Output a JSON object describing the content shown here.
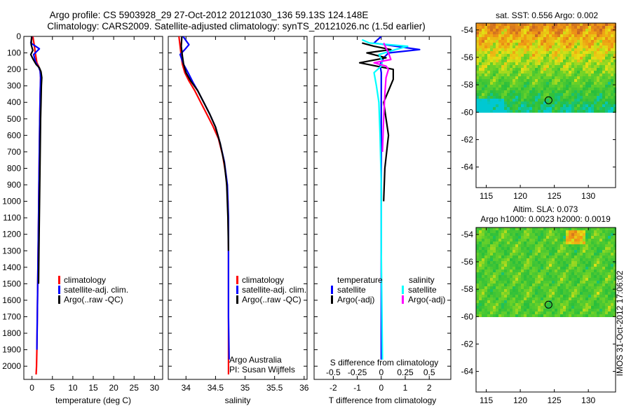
{
  "titles": {
    "line1": "Argo profile: CS 5903928_29 27-Oct-2012 20121030_136 59.13S 124.148E",
    "line2": "Climatology: CARS2009. Satellite-adjusted climatology: synTS_20121026.nc (1.5d earlier)"
  },
  "colors": {
    "climatology": "#ff0000",
    "satellite": "#0000ff",
    "argo": "#000000",
    "salinity_satellite": "#00ffff",
    "salinity_argo": "#ff00ff"
  },
  "chart_data": [
    {
      "type": "line",
      "name": "temperature",
      "xlabel": "temperature (deg C)",
      "ylabel": "",
      "xlim": [
        -2,
        32
      ],
      "ylim": [
        2080,
        0
      ],
      "xticks": [
        0,
        5,
        10,
        15,
        20,
        25,
        30
      ],
      "xtick_labels": [
        "0",
        "5",
        "10",
        "15",
        "20",
        "25",
        "30"
      ],
      "yticks": [
        0,
        100,
        200,
        300,
        400,
        500,
        600,
        700,
        800,
        900,
        1000,
        1100,
        1200,
        1300,
        1400,
        1500,
        1600,
        1700,
        1800,
        1900,
        2000
      ],
      "ytick_labels": [
        "0",
        "100",
        "200",
        "300",
        "400",
        "500",
        "600",
        "700",
        "800",
        "900",
        "1000",
        "1100",
        "1200",
        "1300",
        "1400",
        "1500",
        "1600",
        "1700",
        "1800",
        "1900",
        "2000"
      ],
      "legend": [
        "climatology",
        "satellite-adj. clim.",
        "Argo(..raw -QC)"
      ],
      "legend_position": "lower-middle",
      "series": [
        {
          "name": "climatology",
          "color_key": "climatology",
          "x": [
            0.2,
            0.4,
            0.6,
            0.8,
            1.0,
            1.2,
            1.6,
            2.0,
            2.1,
            2.0,
            1.9,
            1.8,
            1.7,
            1.6,
            1.5,
            1.4,
            1.3,
            1.2,
            1.1,
            1.0
          ],
          "y": [
            0,
            30,
            60,
            100,
            130,
            160,
            180,
            210,
            250,
            350,
            500,
            700,
            900,
            1100,
            1300,
            1500,
            1700,
            1900,
            2000,
            2050
          ]
        },
        {
          "name": "satellite-adj. clim.",
          "color_key": "satellite",
          "x": [
            0.0,
            -0.3,
            1.8,
            0.4,
            0.8,
            1.2,
            1.6,
            2.0,
            2.1,
            2.0,
            1.9,
            1.8,
            1.7,
            1.6,
            1.5,
            1.4,
            1.3,
            1.2
          ],
          "y": [
            0,
            40,
            75,
            110,
            150,
            170,
            185,
            210,
            250,
            350,
            500,
            700,
            900,
            1100,
            1300,
            1500,
            1700,
            1900
          ]
        },
        {
          "name": "Argo(..raw -QC)",
          "color_key": "argo",
          "x": [
            -0.1,
            -0.2,
            0.2,
            -0.3,
            0.3,
            1.0,
            1.8,
            2.2,
            2.4,
            2.3,
            2.2,
            2.1,
            2.0,
            1.9,
            1.8,
            1.7,
            1.6
          ],
          "y": [
            0,
            50,
            85,
            110,
            140,
            170,
            190,
            215,
            250,
            300,
            400,
            500,
            700,
            900,
            1100,
            1300,
            1500
          ]
        }
      ]
    },
    {
      "type": "line",
      "name": "salinity",
      "xlabel": "salinity",
      "xlim": [
        33.7,
        36.05
      ],
      "ylim": [
        2080,
        0
      ],
      "xticks": [
        34,
        34.5,
        35,
        35.5,
        36
      ],
      "xtick_labels": [
        "34",
        "34.5",
        "35",
        "35.5",
        "36"
      ],
      "legend": [
        "climatology",
        "satellite-adj. clim.",
        "Argo(..raw -QC)"
      ],
      "legend_position": "lower-right",
      "annotation": [
        "Argo Australia",
        "PI: Susan Wijffels"
      ],
      "series": [
        {
          "name": "climatology",
          "color_key": "climatology",
          "x": [
            33.88,
            33.9,
            33.92,
            33.94,
            33.98,
            34.05,
            34.15,
            34.25,
            34.35,
            34.45,
            34.55,
            34.62,
            34.68,
            34.71,
            34.72,
            34.72,
            34.72
          ],
          "y": [
            0,
            60,
            120,
            170,
            220,
            270,
            330,
            400,
            470,
            540,
            620,
            720,
            850,
            1000,
            1300,
            1700,
            2050
          ]
        },
        {
          "name": "satellite-adj. clim.",
          "color_key": "satellite",
          "x": [
            33.95,
            34.05,
            33.98,
            33.9,
            33.96,
            34.05,
            34.12,
            34.2,
            34.3,
            34.4,
            34.5,
            34.58,
            34.65,
            34.7,
            34.72,
            34.72,
            34.72,
            34.73
          ],
          "y": [
            0,
            50,
            80,
            110,
            170,
            230,
            280,
            330,
            400,
            470,
            550,
            650,
            760,
            900,
            1100,
            1400,
            1700,
            1960
          ]
        },
        {
          "name": "Argo(..raw -QC)",
          "color_key": "argo",
          "x": [
            33.93,
            33.92,
            33.94,
            33.96,
            34.0,
            34.08,
            34.2,
            34.3,
            34.4,
            34.5,
            34.58,
            34.65,
            34.69,
            34.71,
            34.72
          ],
          "y": [
            0,
            60,
            120,
            170,
            220,
            270,
            330,
            400,
            470,
            550,
            650,
            770,
            900,
            1100,
            1300
          ]
        }
      ]
    },
    {
      "type": "line",
      "name": "difference",
      "xlabel": "T difference from climatology",
      "xlabel_top": "S difference from climatology",
      "xlim": [
        -2.8,
        2.9
      ],
      "ylim": [
        2080,
        0
      ],
      "xticks": [
        -2,
        -1,
        0,
        1,
        2
      ],
      "xtick_labels": [
        "-2",
        "-1",
        "0",
        "1",
        "2"
      ],
      "sticks": [
        -2,
        -1,
        0,
        1,
        2
      ],
      "stick_labels": [
        "-0.5",
        "-0.25",
        "0",
        "0.25",
        "0.5"
      ],
      "legend_groups": [
        {
          "title": "temperature",
          "items": [
            "satellite",
            "Argo(-adj)"
          ]
        },
        {
          "title": "salinity",
          "items": [
            "satellite",
            "Argo(-adj)"
          ]
        }
      ],
      "legend_position": "lower-middle",
      "series": [
        {
          "name": "temperature satellite",
          "color_key": "satellite",
          "x": [
            0,
            -0.3,
            0.6,
            1.6,
            0.3,
            0.1,
            -0.05,
            0,
            0,
            0,
            0,
            0,
            0
          ],
          "y": [
            0,
            40,
            60,
            80,
            100,
            130,
            170,
            220,
            300,
            500,
            900,
            1400,
            1960
          ]
        },
        {
          "name": "temperature Argo(-adj)",
          "color_key": "argo",
          "x": [
            -0.8,
            -0.3,
            0.4,
            -0.6,
            0.2,
            -0.9,
            -0.2,
            0.5,
            0.5,
            0.1,
            0.3,
            0.15,
            0.1
          ],
          "y": [
            40,
            60,
            80,
            100,
            130,
            160,
            180,
            200,
            260,
            400,
            600,
            800,
            1000
          ]
        },
        {
          "name": "salinity satellite",
          "color_key": "salinity_satellite",
          "x": [
            -0.8,
            -0.5,
            1.1,
            0.6,
            -0.1,
            0.05,
            0,
            -0.3,
            -0.2,
            -0.1,
            -0.05,
            0,
            0,
            0.05
          ],
          "y": [
            20,
            40,
            60,
            80,
            110,
            150,
            180,
            220,
            300,
            400,
            600,
            900,
            1300,
            1960
          ]
        },
        {
          "name": "salinity Argo(-adj)",
          "color_key": "salinity_argo",
          "x": [
            0.1,
            0.2,
            0.3,
            0.4,
            -0.3,
            0.2,
            0.3,
            0.2,
            0.15,
            0.1,
            0.05
          ],
          "y": [
            40,
            70,
            100,
            140,
            160,
            180,
            200,
            250,
            350,
            500,
            700
          ]
        }
      ]
    },
    {
      "type": "heatmap",
      "name": "sat-sst-map",
      "title": "sat. SST: 0.556 Argo: 0.002",
      "xlim": [
        113.5,
        134
      ],
      "ylim": [
        -65.5,
        -53.5
      ],
      "xticks": [
        115,
        120,
        125,
        130
      ],
      "yticks": [
        -54,
        -56,
        -58,
        -60,
        -62,
        -64
      ],
      "data_extent_lat": [
        -60,
        -53.5
      ],
      "marker": {
        "lon": 124.148,
        "lat": -59.13
      }
    },
    {
      "type": "heatmap",
      "name": "sla-map",
      "title": "Altim. SLA: 0.073",
      "subtitle": "Argo h1000: 0.0023 h2000: 0.0019",
      "xlim": [
        113.5,
        134
      ],
      "ylim": [
        -65.5,
        -53.5
      ],
      "xticks": [
        115,
        120,
        125,
        130
      ],
      "yticks": [
        -54,
        -56,
        -58,
        -60,
        -62,
        -64
      ],
      "data_extent_lat": [
        -60,
        -53.5
      ],
      "marker": {
        "lon": 124.148,
        "lat": -59.13
      }
    }
  ],
  "watermark": "IMOS 31-Oct-2012 17:06:02"
}
